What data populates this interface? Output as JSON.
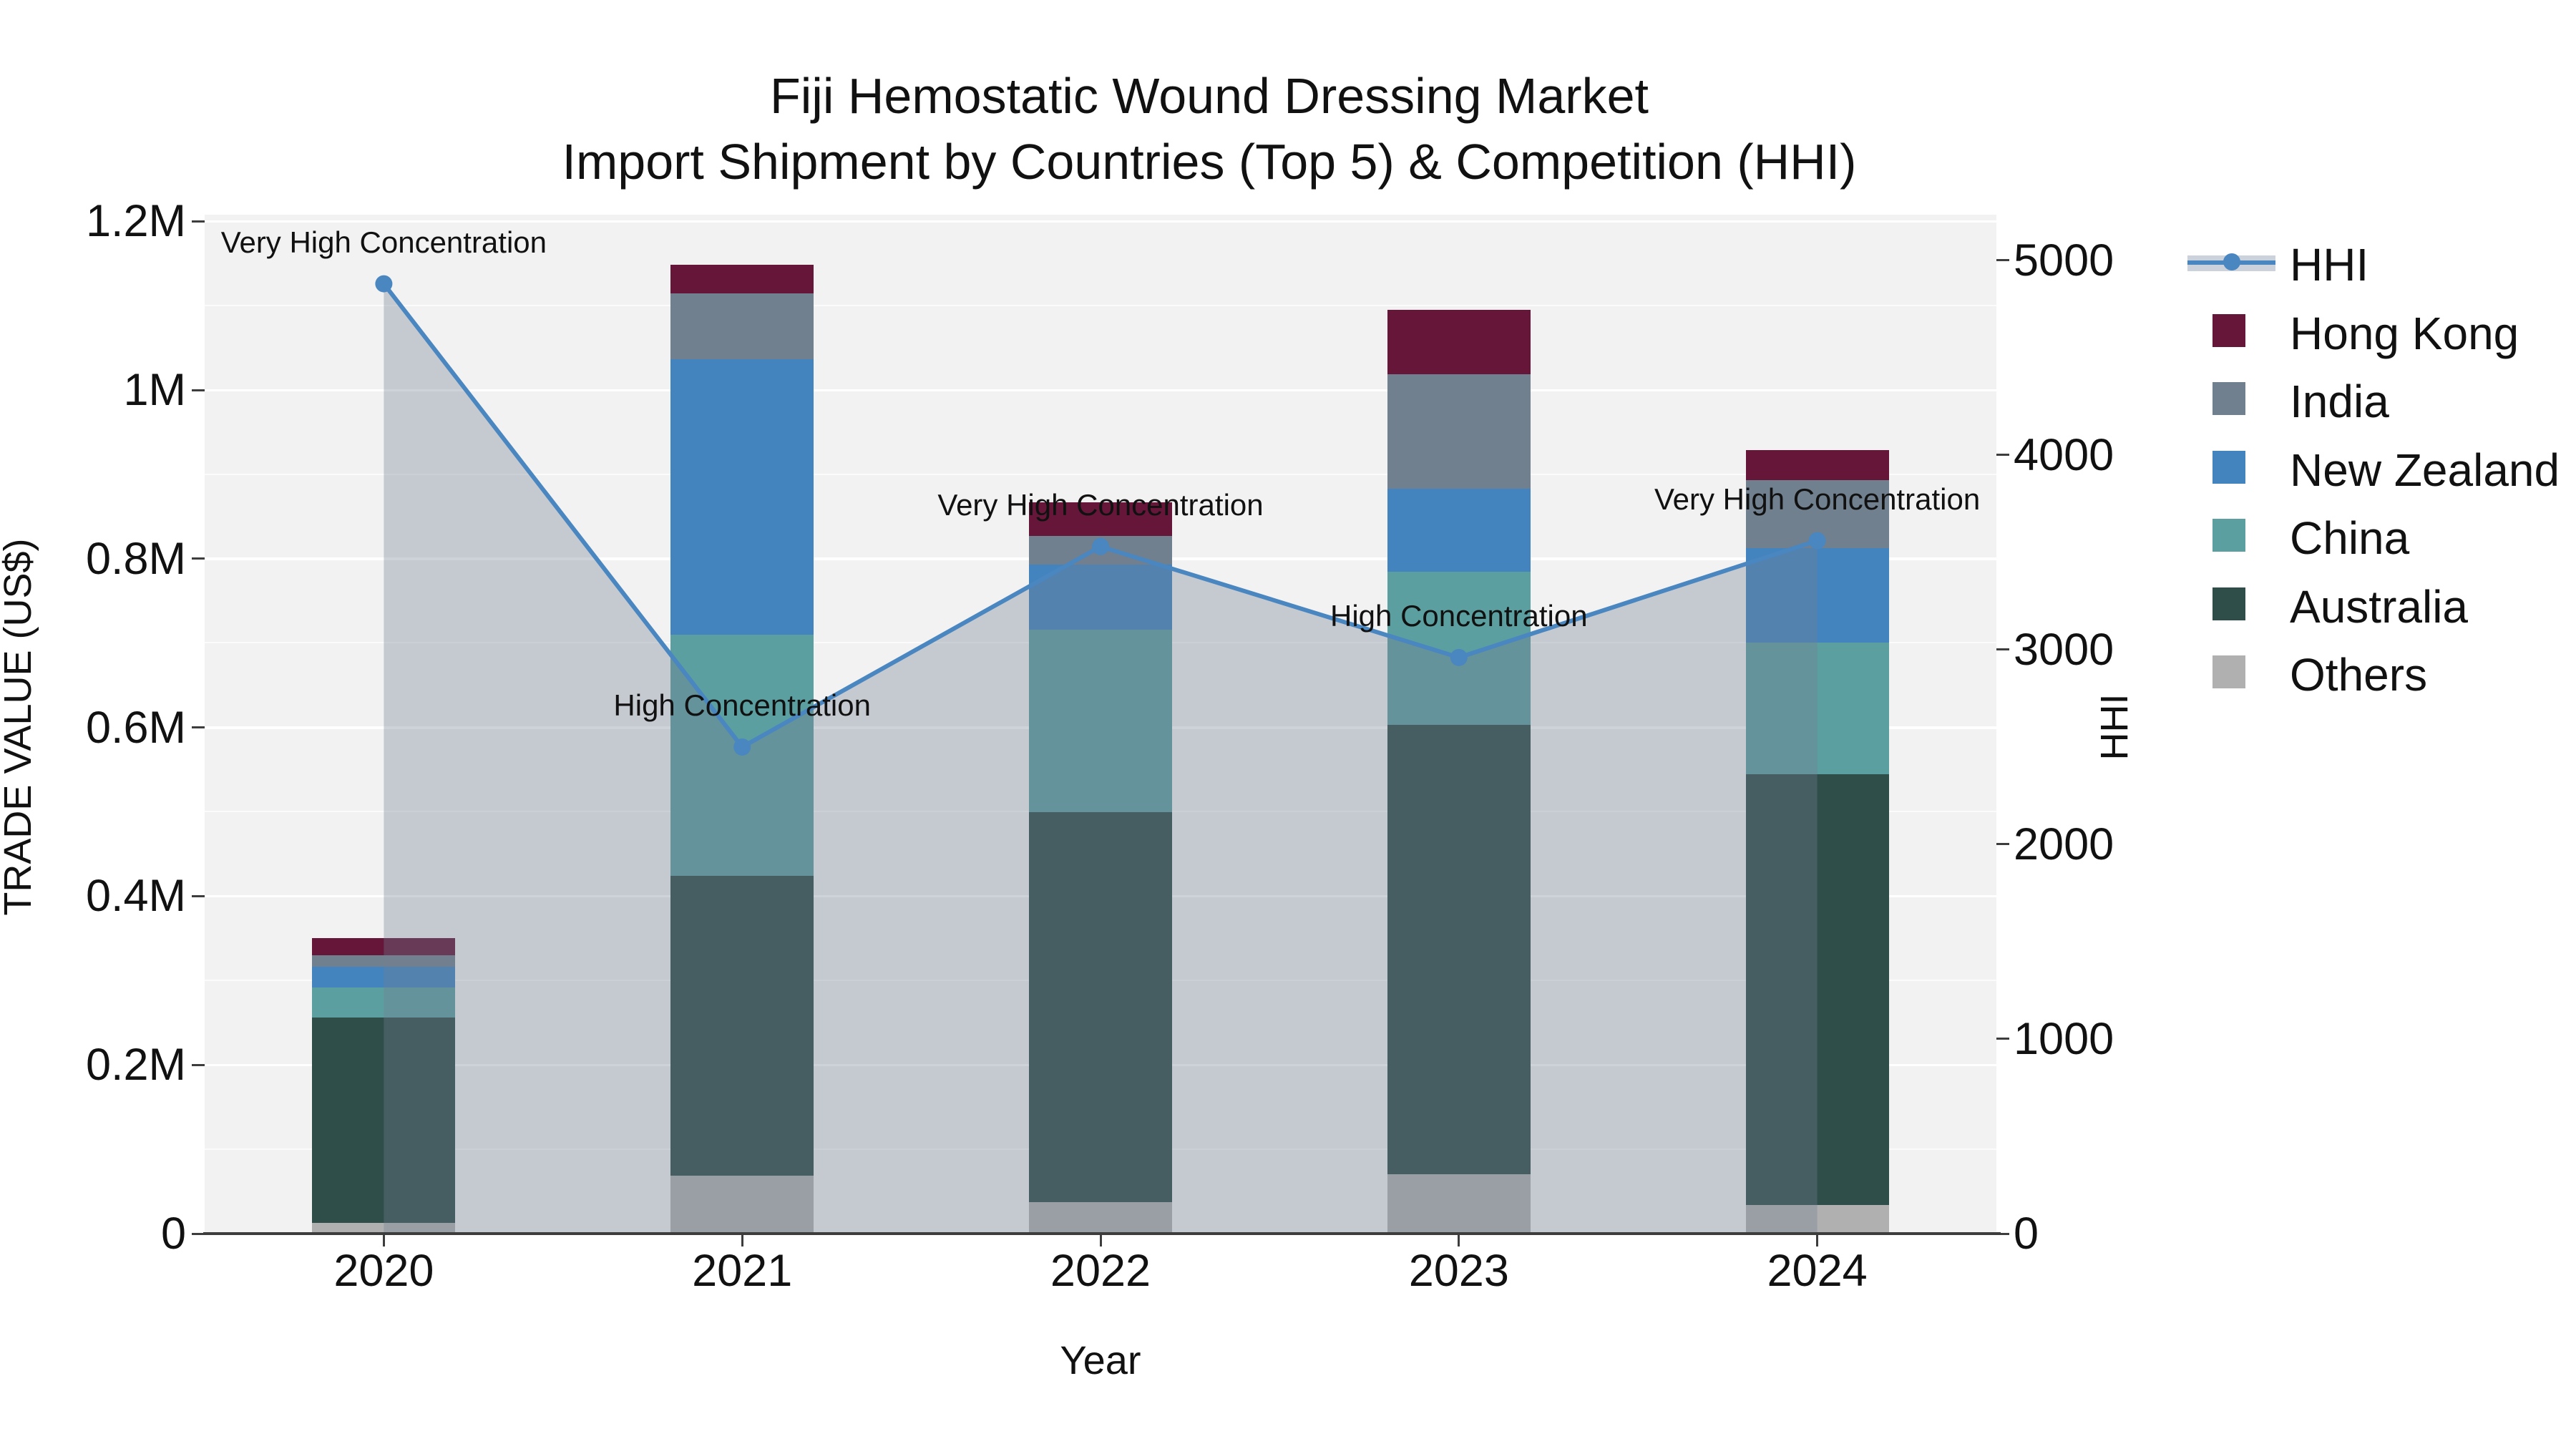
{
  "title": {
    "line1": "Fiji Hemostatic Wound Dressing Market",
    "line2": "Import Shipment by Countries (Top 5) & Competition (HHI)"
  },
  "axes": {
    "y_left_title": "TRADE VALUE (US$)",
    "y_right_title": "HHI",
    "x_title": "Year",
    "y_left_ticks": [
      {
        "value": 0,
        "label": "0"
      },
      {
        "value": 200000,
        "label": "0.2M"
      },
      {
        "value": 400000,
        "label": "0.4M"
      },
      {
        "value": 600000,
        "label": "0.6M"
      },
      {
        "value": 800000,
        "label": "0.8M"
      },
      {
        "value": 1000000,
        "label": "1M"
      },
      {
        "value": 1200000,
        "label": "1.2M"
      }
    ],
    "y_right_ticks": [
      {
        "value": 0,
        "label": "0"
      },
      {
        "value": 1000,
        "label": "1000"
      },
      {
        "value": 2000,
        "label": "2000"
      },
      {
        "value": 3000,
        "label": "3000"
      },
      {
        "value": 4000,
        "label": "4000"
      },
      {
        "value": 5000,
        "label": "5000"
      }
    ]
  },
  "colors": {
    "plot_background": "#f2f2f2",
    "figure_background": "#ffffff",
    "axis_line": "#3d3d3d",
    "hhi_line": "#4a86c0",
    "hhi_area": "rgba(115,125,145,0.35)",
    "hong_kong": "#651639",
    "india": "#70808e",
    "new_zealand": "#4384bf",
    "china": "#5c9fa0",
    "australia": "#2f4e49",
    "others": "#b0b0b0"
  },
  "legend": {
    "items": [
      {
        "label": "HHI",
        "type": "line",
        "color": "#4a86c0",
        "band": "#ccd2dc"
      },
      {
        "label": "Hong Kong",
        "type": "swatch",
        "color": "#651639"
      },
      {
        "label": "India",
        "type": "swatch",
        "color": "#70808e"
      },
      {
        "label": "New Zealand",
        "type": "swatch",
        "color": "#4384bf"
      },
      {
        "label": "China",
        "type": "swatch",
        "color": "#5c9fa0"
      },
      {
        "label": "Australia",
        "type": "swatch",
        "color": "#2f4e49"
      },
      {
        "label": "Others",
        "type": "swatch",
        "color": "#b0b0b0"
      }
    ]
  },
  "chart_data": {
    "type": "combo_stacked_bar_line",
    "categories": [
      "2020",
      "2021",
      "2022",
      "2023",
      "2024"
    ],
    "bar_unit": "US$",
    "series": [
      {
        "name": "Hong Kong",
        "color": "#651639",
        "values": [
          20000,
          34000,
          40000,
          76000,
          36000
        ]
      },
      {
        "name": "India",
        "color": "#70808e",
        "values": [
          14000,
          78000,
          34000,
          136000,
          80000
        ]
      },
      {
        "name": "New Zealand",
        "color": "#4384bf",
        "values": [
          24000,
          327000,
          77000,
          98000,
          112000
        ]
      },
      {
        "name": "China",
        "color": "#5c9fa0",
        "values": [
          36000,
          286000,
          216000,
          182000,
          156000
        ]
      },
      {
        "name": "Australia",
        "color": "#2f4e49",
        "values": [
          243000,
          355000,
          463000,
          533000,
          511000
        ]
      },
      {
        "name": "Others",
        "color": "#b0b0b0",
        "values": [
          13000,
          69000,
          37000,
          70000,
          34000
        ]
      }
    ],
    "line_series": {
      "name": "HHI",
      "color": "#4a86c0",
      "values": [
        4880,
        2500,
        3530,
        2960,
        3560
      ]
    },
    "annotations": [
      {
        "year": "2020",
        "text": "Very High Concentration"
      },
      {
        "year": "2021",
        "text": "High Concentration"
      },
      {
        "year": "2022",
        "text": "Very High Concentration"
      },
      {
        "year": "2023",
        "text": "High Concentration"
      },
      {
        "year": "2024",
        "text": "Very High Concentration"
      }
    ],
    "ylim_left": [
      0,
      1200000
    ],
    "ylim_right": [
      0,
      5000
    ],
    "xlabel": "Year",
    "ylabel_left": "TRADE VALUE (US$)",
    "ylabel_right": "HHI",
    "grid": true,
    "legend_position": "right"
  }
}
